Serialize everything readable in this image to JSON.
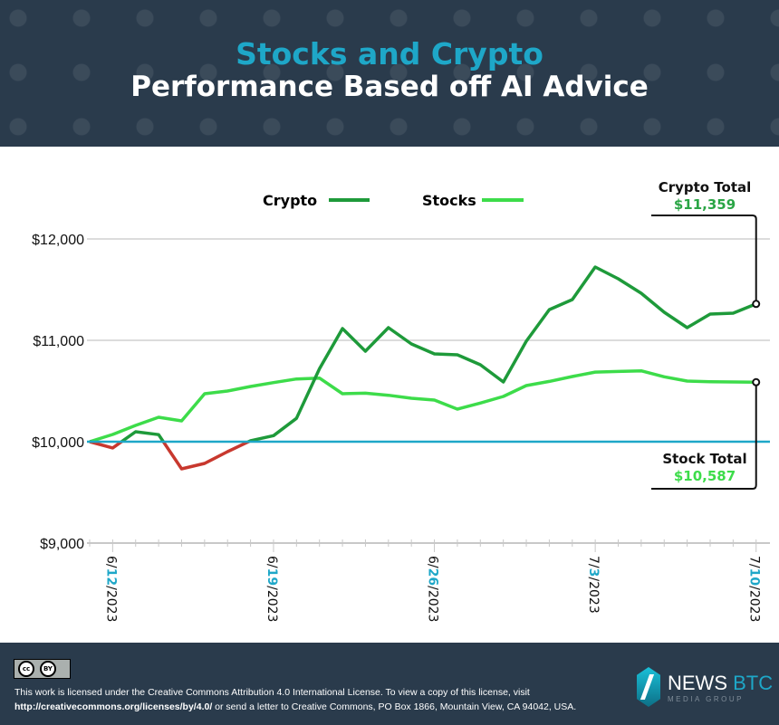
{
  "header": {
    "title_line1": "Stocks and Crypto",
    "title_line2": "Performance Based off AI Advice"
  },
  "colors": {
    "crypto": "#1e9a3a",
    "stocks": "#3ddc4a",
    "below_baseline": "#c8382e",
    "baseline": "#1ea7c8",
    "date_accent": "#1ea7c8"
  },
  "chart_data": {
    "type": "line",
    "title": "Stocks and Crypto Performance Based off AI Advice",
    "xlabel": "",
    "ylabel": "",
    "ylim": [
      9000,
      12200
    ],
    "yticks": [
      {
        "value": 9000,
        "label": "$9,000"
      },
      {
        "value": 10000,
        "label": "$10,000"
      },
      {
        "value": 11000,
        "label": "$11,000"
      },
      {
        "value": 12000,
        "label": "$12,000"
      }
    ],
    "x_start": "6/11/2023",
    "xticks": [
      {
        "day": 1,
        "pre": "6/",
        "mid": "12",
        "post": "/2023"
      },
      {
        "day": 8,
        "pre": "6/",
        "mid": "19",
        "post": "/2023"
      },
      {
        "day": 15,
        "pre": "6/",
        "mid": "26",
        "post": "/2023"
      },
      {
        "day": 22,
        "pre": "7/",
        "mid": "3",
        "post": "/2023"
      },
      {
        "day": 29,
        "pre": "7/",
        "mid": "10",
        "post": "/2023"
      }
    ],
    "baseline": 10000,
    "legend": {
      "placement": "top",
      "crypto": "Crypto",
      "stocks": "Stocks"
    },
    "series": [
      {
        "name": "Crypto",
        "values": [
          10000,
          9938,
          10098,
          10070,
          9732,
          9786,
          9902,
          10010,
          10060,
          10230,
          10720,
          11116,
          10893,
          11125,
          10964,
          10866,
          10857,
          10759,
          10589,
          10991,
          11303,
          11402,
          11723,
          11607,
          11464,
          11277,
          11125,
          11259,
          11268,
          11359
        ]
      },
      {
        "name": "Stocks",
        "values": [
          10000,
          10071,
          10161,
          10241,
          10205,
          10473,
          10500,
          10545,
          10583,
          10619,
          10628,
          10473,
          10479,
          10458,
          10429,
          10411,
          10321,
          10381,
          10446,
          10554,
          10595,
          10643,
          10687,
          10693,
          10699,
          10640,
          10598,
          10592,
          10589,
          10587
        ]
      }
    ],
    "annotations": {
      "crypto_total_label": "Crypto Total",
      "crypto_total_value": "$11,359",
      "stock_total_label": "Stock Total",
      "stock_total_value": "$10,587"
    }
  },
  "footer": {
    "cc_badge": "BY",
    "license_line1": "This work is licensed under the Creative Commons Attribution 4.0 International License. To view a copy of this license, visit",
    "license_url": "http://creativecommons.org/licenses/by/4.0/",
    "license_line2_rest": " or send a letter to Creative Commons, PO Box 1866, Mountain View, CA 94042, USA.",
    "brand_news": "NEWS",
    "brand_btc": "BTC",
    "brand_sub": "MEDIA GROUP"
  }
}
